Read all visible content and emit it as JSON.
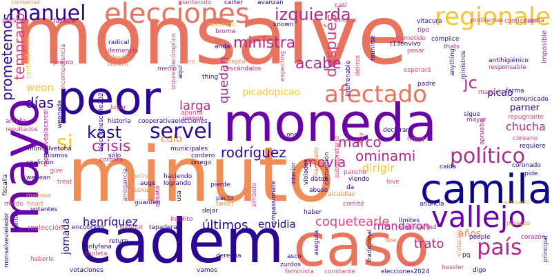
{
  "words": {
    "monsalve": "monsalve",
    "moneda": "moneda",
    "minuto": "minuto",
    "cadem": "cadem",
    "caso": "caso",
    "mayo": "mayo",
    "peor": "peor",
    "camila": "camila",
    "elecciones": "elecciones",
    "regionales": "regionales",
    "vallejo": "vallejo",
    "afectado": "afectado",
    "manuel": "manuel",
    "izquierda": "izquierda",
    "politico": "político",
    "pais": "país",
    "servel": "servel",
    "kast": "kast",
    "crisis": "crisis",
    "si": "si",
    "ministra": "ministra",
    "despues": "después",
    "prometemos": "prometemos",
    "temprano": "temprano",
    "jc": "jc",
    "acabe": "acabe",
    "picaodopicao": "picadopicao",
    "weon": "weon",
    "dias": "días",
    "larga": "larga",
    "quedan": "quedan",
    "marco": "marco",
    "ominami": "ominami",
    "rodriguez": "rodríguez",
    "movia": "movía",
    "dirigir": "dirigir",
    "chucha": "chucha",
    "picao": "picao",
    "parner": "parner",
    "culo": "culo",
    "henriquez": "henríquez",
    "envidia": "envidia",
    "ultimos": "últimos",
    "coquetearle": "coquetearle",
    "mandaron": "mandaron",
    "jornada": "jornada",
    "anos": "años",
    "trato": "trato",
    "consenso": "consenso",
    "mantenido": "mantenido",
    "carter": "carter",
    "avanzan": "avanzan",
    "casi": "casi",
    "cuesta": "cuesta",
    "selfless": "selfless",
    "faltaba": "faltaba",
    "mauricio": "mauricio",
    "broma": "broma",
    "known": "known",
    "sincere": "sincere",
    "vitacura": "vitacura",
    "problemas": "problemas",
    "comienzan": "comienzan",
    "imposible": "imposible",
    "radical": "radical",
    "demencia": "demencia",
    "silently": "silently",
    "vocero": "vocero",
    "medio": "medio",
    "seco": "seco",
    "anda": "anda",
    "inepto": "inepto",
    "escandalos": "escándalos",
    "expecting": "expecting",
    "reunirse": "reunirse",
    "tl3envivo": "t13envivo",
    "pesar": "pesar",
    "complice": "cómplice",
    "thats": "thats",
    "tipo": "tipo",
    "cometido": "cometido",
    "pronto": "pronto",
    "contradiccion": "contradicción",
    "incompetencia": "incompetencia",
    "eleccioneschile2024": "eleccioneschile2024",
    "irrefrenable": "irrefrenable",
    "delitos": "delitos",
    "esperara": "esperará",
    "antihigienico": "antihigiénico",
    "responsable": "responsable",
    "anything": "anything",
    "ministros": "ministros",
    "repugnante": "repugnante",
    "historia": "historia",
    "cooperativaelecciones": "cooperativaelecciones",
    "monsalvepalacarcel": "monsalvealacarcel",
    "lugar": "lugar",
    "thing": "thing",
    "padre": "padre",
    "mayoria": "mayoría",
    "forma": "forma",
    "comunicado": "comunicado",
    "apunta": "apunta",
    "person": "person",
    "declarara": "declarará",
    "sigue": "sigue",
    "mayor": "mayor",
    "coreano": "coreano",
    "requiere": "requiere",
    "amplia": "amplia",
    "resultados": "resultados",
    "monsalvetoha": "monsalvetohá",
    "mismos": "mismos",
    "municipales": "municipales",
    "cordero": "cordero",
    "orrego": "orrego",
    "corbata": "corbata",
    "sobre": "sólo",
    "pancho": "pancho",
    "caida": "caída",
    "coronado": "coronado",
    "pide": "pide",
    "give": "give",
    "arrogancia": "arrogancia",
    "merino": "merino",
    "haciendo": "haciendo",
    "logrando": "logrando",
    "auge": "auge",
    "sexual": "sexual",
    "desato": "desató",
    "guarden": "guarden",
    "pierde": "pierde",
    "pacto": "pacto",
    "tweet": "tweet",
    "dejar": "dejar",
    "simbolo": "símbolo",
    "abuso": "abuso",
    "alcaldias": "alcaldías",
    "comite": "comité",
    "anuncia": "anuncia",
    "love": "love",
    "acusado": "acusado",
    "heart": "heart",
    "votantes": "votantes",
    "mafioso": "mafioso",
    "fiscalia": "fiscalía",
    "miedo": "miedo",
    "insolito": "insólito",
    "tapadera": "tapadera",
    "limites": "límites",
    "kindhearted": "kindhearted",
    "palazzo": "palazzo",
    "encubridor": "encubridor",
    "without": "without",
    "reeleccion": "reelección",
    "onlyfana": "onlyfana",
    "tripleta": "tripleta",
    "return": "return",
    "haberle": "haberle",
    "vamos": "vamos",
    "votaciones": "votaciones",
    "derecha": "derecha",
    "feminista": "feminista",
    "constante": "constante",
    "elecciones2024": "elecciones2024",
    "hassler": "hassler",
    "digo": "digo",
    "principal": "principal",
    "corazon": "corazón",
    "violacion": "violación",
    "pq": "pq",
    "see": "see",
    "doe": "doe",
    "people": "people",
    "zurdos": "zurdos",
    "asco": "asco",
    "haber": "haber",
    "asegura": "asegura",
    "tradicional": "tradicional",
    "violador": "violador",
    "manejado": "manejado",
    "corrupcion": "corrupción",
    "interior": "interior",
    "subsecretario": "subsecretario",
    "compassionate": "compassionate",
    "da": "da",
    "viendo": "viendo",
    "datos": "datos",
    "one": "one",
    "way": "way",
    "aprueba": "aprueba",
    "politica": "política",
    "treat": "treat",
    "webean": "webean",
    "coalicion": "coalición",
    "usa": "usa",
    "izquierdacomplice": "izquierdacómplice",
    "aqui": "aquí",
    "webonada": "weonada",
    "monsalveviolador": "monsalveviolador",
    "mosq": "mosq"
  },
  "colors": {
    "orange": "#F08C55",
    "coral": "#E8735E",
    "pink": "#D6457E",
    "magenta": "#B02A8F",
    "purple": "#6A00A8",
    "indigo": "#2A0693",
    "navy": "#0D0887",
    "yellow": "#F7C530",
    "light_yellow": "#F5D43A",
    "violet": "#8B1A9E"
  }
}
